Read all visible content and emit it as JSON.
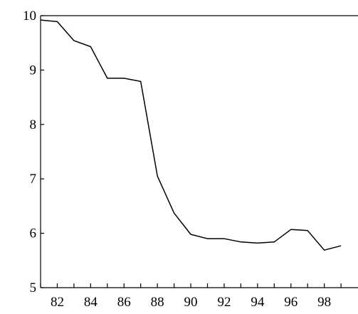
{
  "chart_data": {
    "type": "line",
    "title": "",
    "xlabel": "",
    "ylabel": "",
    "xlim": [
      81,
      99
    ],
    "ylim": [
      5,
      10
    ],
    "y_ticks": [
      5,
      6,
      7,
      8,
      9,
      10
    ],
    "x_ticks": [
      82,
      84,
      86,
      88,
      90,
      92,
      94,
      96,
      98
    ],
    "y_tick_labels": [
      "5",
      "6",
      "7",
      "8",
      "9",
      "10"
    ],
    "x_tick_labels": [
      "82",
      "84",
      "86",
      "88",
      "90",
      "92",
      "94",
      "96",
      "98"
    ],
    "grid": false,
    "series": [
      {
        "color": "#000000",
        "x": [
          81,
          82,
          83,
          84,
          85,
          86,
          87,
          88,
          89,
          90,
          91,
          92,
          93,
          94,
          95,
          96,
          97,
          98,
          99
        ],
        "values": [
          9.92,
          9.89,
          9.54,
          9.43,
          8.85,
          8.85,
          8.79,
          7.05,
          6.37,
          5.98,
          5.9,
          5.9,
          5.84,
          5.82,
          5.84,
          6.07,
          6.05,
          5.69,
          5.77
        ]
      }
    ]
  }
}
